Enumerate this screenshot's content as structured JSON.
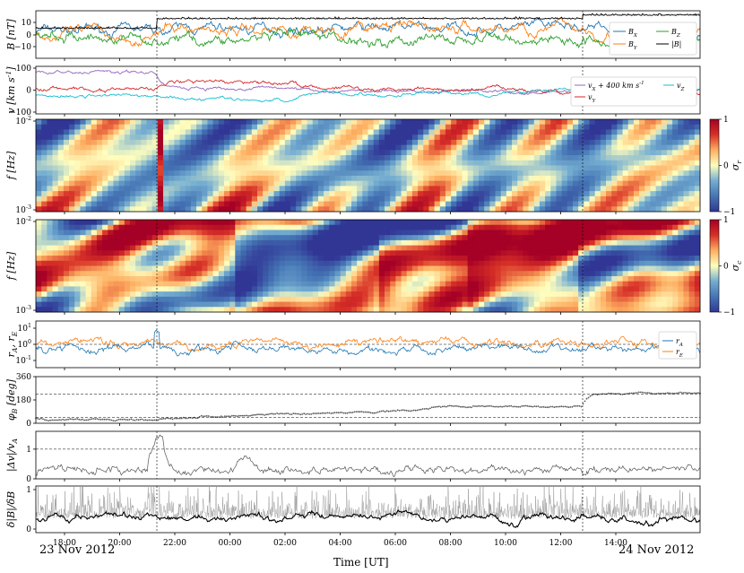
{
  "chart_data": [
    {
      "type": "line",
      "ylabel": "B [nT]",
      "ylim": [
        -20,
        20
      ],
      "yticks": [
        "10",
        "0",
        "−10"
      ],
      "legend_position": "top-right",
      "series": [
        {
          "name": "B_X",
          "color": "#1f77b4"
        },
        {
          "name": "B_Y",
          "color": "#ff7f0e"
        },
        {
          "name": "B_Z",
          "color": "#2ca02c"
        },
        {
          "name": "|B|",
          "color": "#000000"
        }
      ],
      "legend_labels": [
        "B_X",
        "B_Z",
        "B_Y",
        "|B|"
      ]
    },
    {
      "type": "line",
      "ylabel": "v [km s^-1]",
      "ylim": [
        -100,
        100
      ],
      "yticks": [
        "100",
        "0",
        "−100"
      ],
      "legend_position": "top-right",
      "series": [
        {
          "name": "v_X + 400 km s^-1",
          "color": "#9467bd"
        },
        {
          "name": "v_Y",
          "color": "#d62728"
        },
        {
          "name": "v_Z",
          "color": "#17becf"
        }
      ],
      "legend_labels": [
        "v_X + 400 km s^-1",
        "v_Z",
        "v_Y"
      ]
    },
    {
      "type": "heatmap",
      "ylabel": "f [Hz]",
      "yscale": "log",
      "yticks": [
        "10^-2",
        "10^-3"
      ],
      "colorbar_label": "σ_r",
      "colorbar_ticks": [
        "1",
        "0",
        "−1"
      ],
      "colormap": "RdYlBu_r"
    },
    {
      "type": "heatmap",
      "ylabel": "f [Hz]",
      "yscale": "log",
      "yticks": [
        "10^-2",
        "10^-3"
      ],
      "colorbar_label": "σ_c",
      "colorbar_ticks": [
        "1",
        "0",
        "−1"
      ],
      "colormap": "RdYlBu_r"
    },
    {
      "type": "line",
      "ylabel": "r_A, r_E",
      "yscale": "log",
      "yticks": [
        "10^1",
        "10^0",
        "10^-1"
      ],
      "legend_position": "right",
      "series": [
        {
          "name": "r_A",
          "color": "#1f77b4"
        },
        {
          "name": "r_E",
          "color": "#ff7f0e"
        }
      ]
    },
    {
      "type": "scatter",
      "ylabel": "φ_B [deg]",
      "ylim": [
        0,
        360
      ],
      "yticks": [
        "360",
        "180",
        "0"
      ],
      "reference_lines": [
        45,
        225
      ]
    },
    {
      "type": "line",
      "ylabel": "|Δv|/v_A",
      "ylim": [
        0,
        1.6
      ],
      "yticks": [
        "1",
        "0"
      ],
      "reference_lines": [
        1
      ]
    },
    {
      "type": "line",
      "ylabel": "δ|B|/δB",
      "ylim": [
        0,
        1
      ],
      "yticks": [
        "1",
        "0"
      ]
    }
  ],
  "xaxis": {
    "label": "Time [UT]",
    "ticks": [
      "18:00",
      "20:00",
      "22:00",
      "00:00",
      "02:00",
      "04:00",
      "06:00",
      "08:00",
      "10:00",
      "12:00",
      "14:00"
    ],
    "date_start": "23 Nov 2012",
    "date_end": "24 Nov 2012"
  },
  "colors": {
    "axis": "#000000",
    "trace_gray": "#555555"
  }
}
